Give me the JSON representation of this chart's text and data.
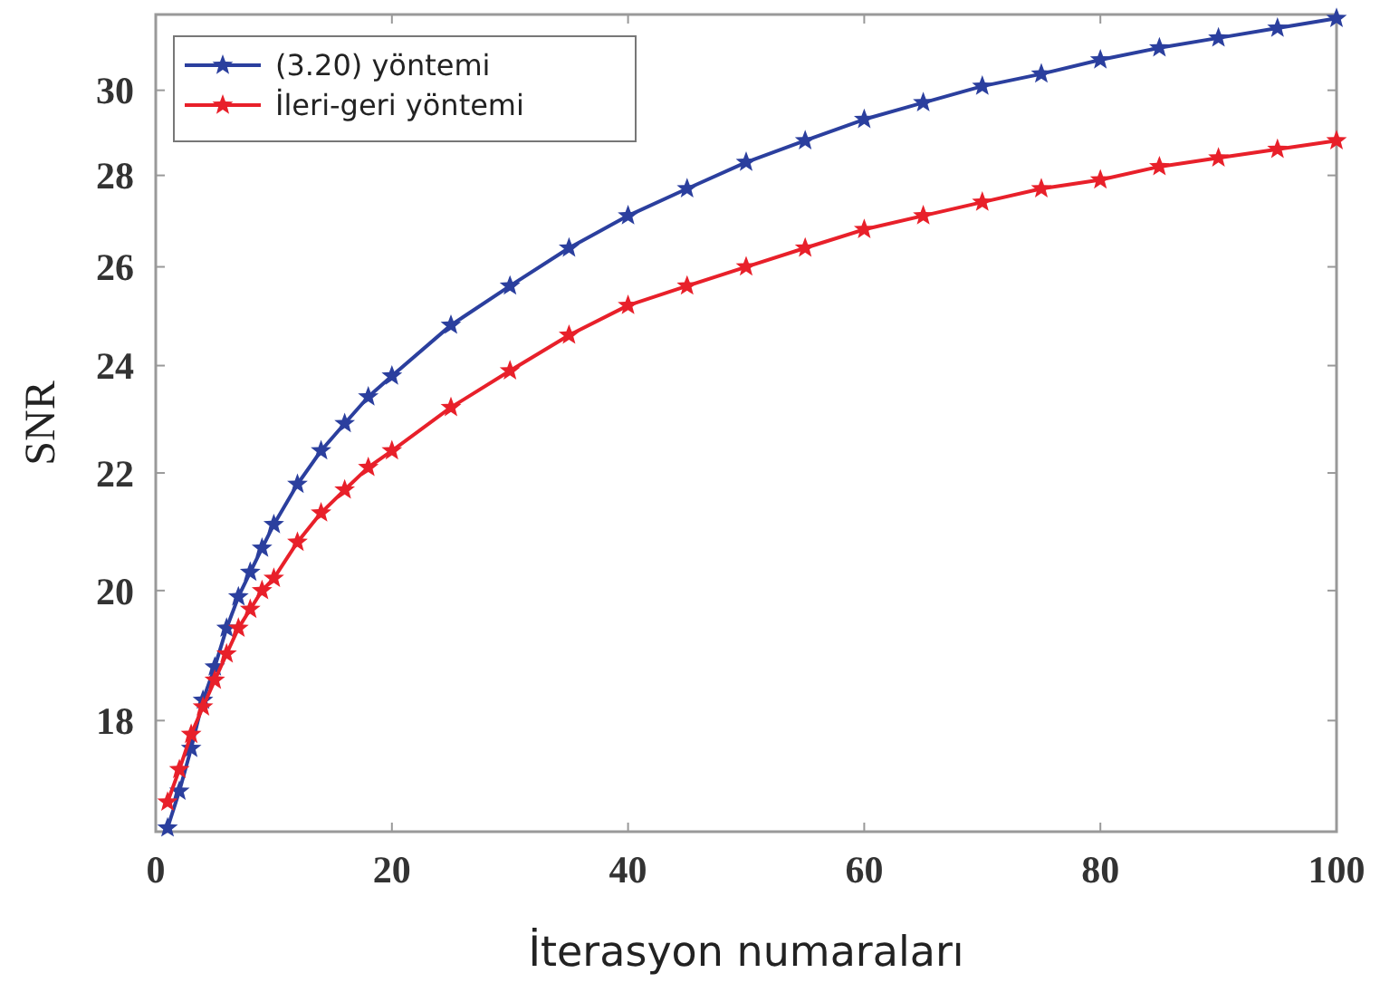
{
  "chart_data": {
    "type": "line",
    "xlabel": "İterasyon numaraları",
    "ylabel": "SNR",
    "x": [
      1,
      2,
      3,
      4,
      5,
      6,
      7,
      8,
      9,
      10,
      12,
      14,
      16,
      18,
      20,
      25,
      30,
      35,
      40,
      45,
      50,
      55,
      60,
      65,
      70,
      75,
      80,
      85,
      90,
      95,
      100
    ],
    "series": [
      {
        "name": "(3.20) yöntemi",
        "color": "#2b3f9e",
        "values": [
          16.5,
          17.0,
          17.6,
          18.3,
          18.8,
          19.4,
          19.9,
          20.3,
          20.7,
          21.1,
          21.8,
          22.4,
          22.9,
          23.4,
          23.8,
          24.8,
          25.6,
          26.4,
          27.1,
          27.7,
          28.3,
          28.8,
          29.3,
          29.7,
          30.1,
          30.4,
          30.75,
          31.05,
          31.3,
          31.55,
          31.8
        ]
      },
      {
        "name": "İleri-geri yöntemi",
        "color": "#e8202a",
        "values": [
          16.85,
          17.3,
          17.8,
          18.2,
          18.6,
          19.0,
          19.4,
          19.7,
          20.0,
          20.2,
          20.8,
          21.3,
          21.7,
          22.1,
          22.4,
          23.2,
          23.9,
          24.6,
          25.2,
          25.6,
          26.0,
          26.4,
          26.8,
          27.1,
          27.4,
          27.7,
          27.9,
          28.2,
          28.4,
          28.6,
          28.8
        ]
      }
    ],
    "xlim": [
      0,
      100
    ],
    "xticks": [
      0,
      20,
      40,
      60,
      80,
      100
    ],
    "ylim": [
      16.45,
      31.9
    ],
    "yticks": [
      18,
      20,
      22,
      24,
      26,
      28,
      30
    ],
    "log": "y",
    "grid": false,
    "legend": "top left",
    "marker": "star",
    "line_style": "solid"
  }
}
